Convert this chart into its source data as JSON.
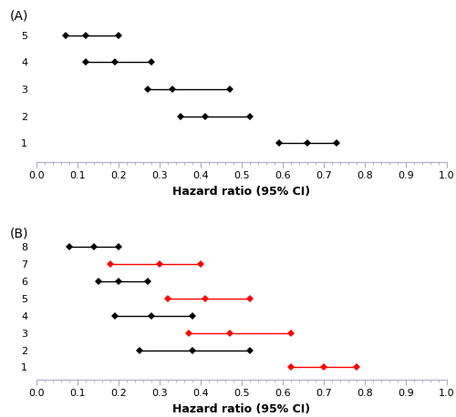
{
  "panel_A": {
    "rows": [
      1,
      2,
      3,
      4,
      5
    ],
    "low": [
      0.59,
      0.35,
      0.27,
      0.12,
      0.07
    ],
    "mid": [
      0.66,
      0.41,
      0.33,
      0.19,
      0.12
    ],
    "high": [
      0.73,
      0.52,
      0.47,
      0.28,
      0.2
    ],
    "colors": [
      "black",
      "black",
      "black",
      "black",
      "black"
    ]
  },
  "panel_B": {
    "rows": [
      1,
      2,
      3,
      4,
      5,
      6,
      7,
      8
    ],
    "low": [
      0.62,
      0.25,
      0.37,
      0.19,
      0.32,
      0.15,
      0.18,
      0.08
    ],
    "mid": [
      0.7,
      0.38,
      0.47,
      0.28,
      0.41,
      0.2,
      0.3,
      0.14
    ],
    "high": [
      0.78,
      0.52,
      0.62,
      0.38,
      0.52,
      0.27,
      0.4,
      0.2
    ],
    "colors": [
      "red",
      "black",
      "red",
      "black",
      "red",
      "black",
      "red",
      "black"
    ]
  },
  "xlabel": "Hazard ratio (95% CI)",
  "xlim": [
    0.0,
    1.0
  ],
  "xticks_major": [
    0.0,
    0.1,
    0.2,
    0.3,
    0.4,
    0.5,
    0.6,
    0.7,
    0.8,
    0.9,
    1.0
  ],
  "label_A": "(A)",
  "label_B": "(B)",
  "marker": "D",
  "markersize": 4,
  "linewidth": 1.0,
  "background_color": "#ffffff",
  "axis_color": "#aaaacc",
  "tick_color": "#aaaacc",
  "xlabel_fontsize": 9,
  "xlabel_fontweight": "bold",
  "ytick_fontsize": 8,
  "xtick_fontsize": 8,
  "panel_label_fontsize": 10
}
